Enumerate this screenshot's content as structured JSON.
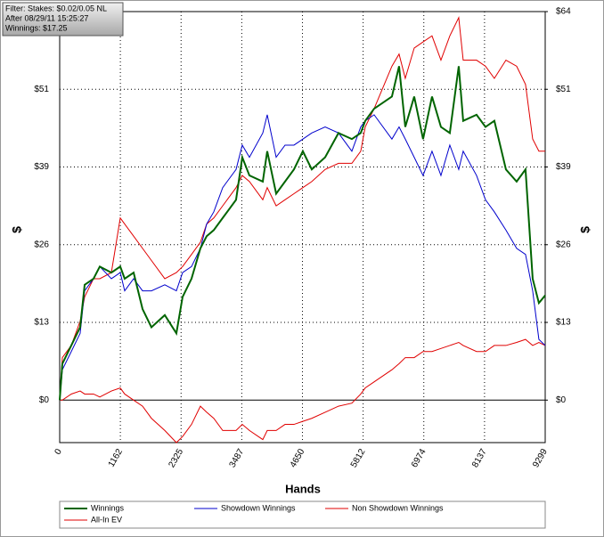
{
  "chart_data": {
    "type": "line",
    "info": [
      "Filter: Stakes: $0.02/0.05 NL",
      "After 08/29/11 15:25:27",
      "Winnings: $17.25"
    ],
    "xlabel": "Hands",
    "ylabel": "$",
    "y2label": "$",
    "x": [
      0,
      51,
      222,
      392,
      478,
      648,
      768,
      990,
      1160,
      1245,
      1416,
      1587,
      1757,
      2013,
      2235,
      2354,
      2525,
      2695,
      2815,
      2951,
      3122,
      3378,
      3497,
      3634,
      3890,
      3975,
      4146,
      4316,
      4487,
      4657,
      4828,
      5084,
      5340,
      5596,
      5766,
      5852,
      6022,
      6363,
      6500,
      6619,
      6790,
      6960,
      7131,
      7302,
      7472,
      7643,
      7728,
      7984,
      8155,
      8325,
      8547,
      8752,
      8922,
      9059,
      9178,
      9299
    ],
    "series": [
      {
        "name": "Winnings",
        "color": "#006400",
        "values": [
          0,
          6,
          9,
          12,
          19,
          20,
          22,
          21,
          22,
          20,
          21,
          15,
          12,
          14,
          11,
          17,
          20,
          25,
          27,
          28,
          30,
          33,
          40,
          37,
          36,
          41,
          34,
          36,
          38,
          41,
          38,
          40,
          44,
          43,
          44,
          46,
          48,
          50,
          55,
          45,
          50,
          43,
          50,
          45,
          44,
          55,
          46,
          47,
          45,
          46,
          38,
          36,
          38,
          20,
          16,
          17.25
        ]
      },
      {
        "name": "Showdown Winnings",
        "color": "#0000cc",
        "values": [
          0,
          5,
          8,
          11,
          18,
          20,
          22,
          20,
          21,
          18,
          20,
          18,
          18,
          19,
          18,
          21,
          22,
          25,
          29,
          31,
          35,
          38,
          42,
          40,
          44,
          47,
          40,
          42,
          42,
          43,
          44,
          45,
          44,
          41,
          45,
          46,
          47,
          43,
          45,
          43,
          40,
          37,
          41,
          37,
          42,
          38,
          41,
          37,
          33,
          31,
          28,
          25,
          24,
          18,
          10,
          9
        ]
      },
      {
        "name": "Non Showdown Winnings",
        "color": "#e00000",
        "values": [
          0,
          0,
          1,
          1.5,
          1,
          1,
          0.5,
          1.5,
          2,
          1,
          0,
          -1,
          -3,
          -5,
          -7,
          -6,
          -4,
          -1,
          -2,
          -3,
          -5,
          -5,
          -4,
          -5,
          -6.5,
          -5,
          -5,
          -4,
          -4,
          -3.5,
          -3,
          -2,
          -1,
          -0.5,
          1,
          2,
          3,
          5,
          6,
          7,
          7,
          8,
          8,
          8.5,
          9,
          9.5,
          9,
          8,
          8,
          9,
          9,
          9.5,
          10,
          9,
          9.5,
          9
        ]
      },
      {
        "name": "All-In EV",
        "color": "#e00000",
        "values": [
          0,
          7,
          9,
          13,
          17,
          20,
          20,
          21,
          30,
          29,
          27,
          25,
          23,
          20,
          21,
          22,
          24,
          26,
          29,
          30,
          32,
          35,
          37,
          36,
          33,
          35,
          32,
          33,
          34,
          35,
          36,
          38,
          39,
          39,
          41,
          45,
          48,
          55,
          57,
          53,
          58,
          59,
          60,
          56,
          60,
          63,
          56,
          56,
          55,
          53,
          56,
          55,
          52,
          43,
          41,
          41
        ]
      }
    ],
    "xlim": [
      0,
      9299
    ],
    "xticks": [
      0,
      1162,
      2325,
      3487,
      4650,
      5812,
      6974,
      8137,
      9299
    ],
    "ylim": [
      -7,
      64
    ],
    "yticks": [
      {
        "value": 0,
        "label": "$0"
      },
      {
        "value": 12.8,
        "label": "$13"
      },
      {
        "value": 25.6,
        "label": "$26"
      },
      {
        "value": 38.4,
        "label": "$39"
      },
      {
        "value": 51.2,
        "label": "$51"
      },
      {
        "value": 64,
        "label": "$64"
      }
    ],
    "y2lim": [
      -7,
      64
    ],
    "y2ticks": [
      {
        "value": 0,
        "label": "$0"
      },
      {
        "value": 12.8,
        "label": "$13"
      },
      {
        "value": 25.6,
        "label": "$26"
      },
      {
        "value": 38.4,
        "label": "$39"
      },
      {
        "value": 51.2,
        "label": "$51"
      },
      {
        "value": 64,
        "label": "$64"
      }
    ],
    "grid": true,
    "legend": "bottom"
  }
}
